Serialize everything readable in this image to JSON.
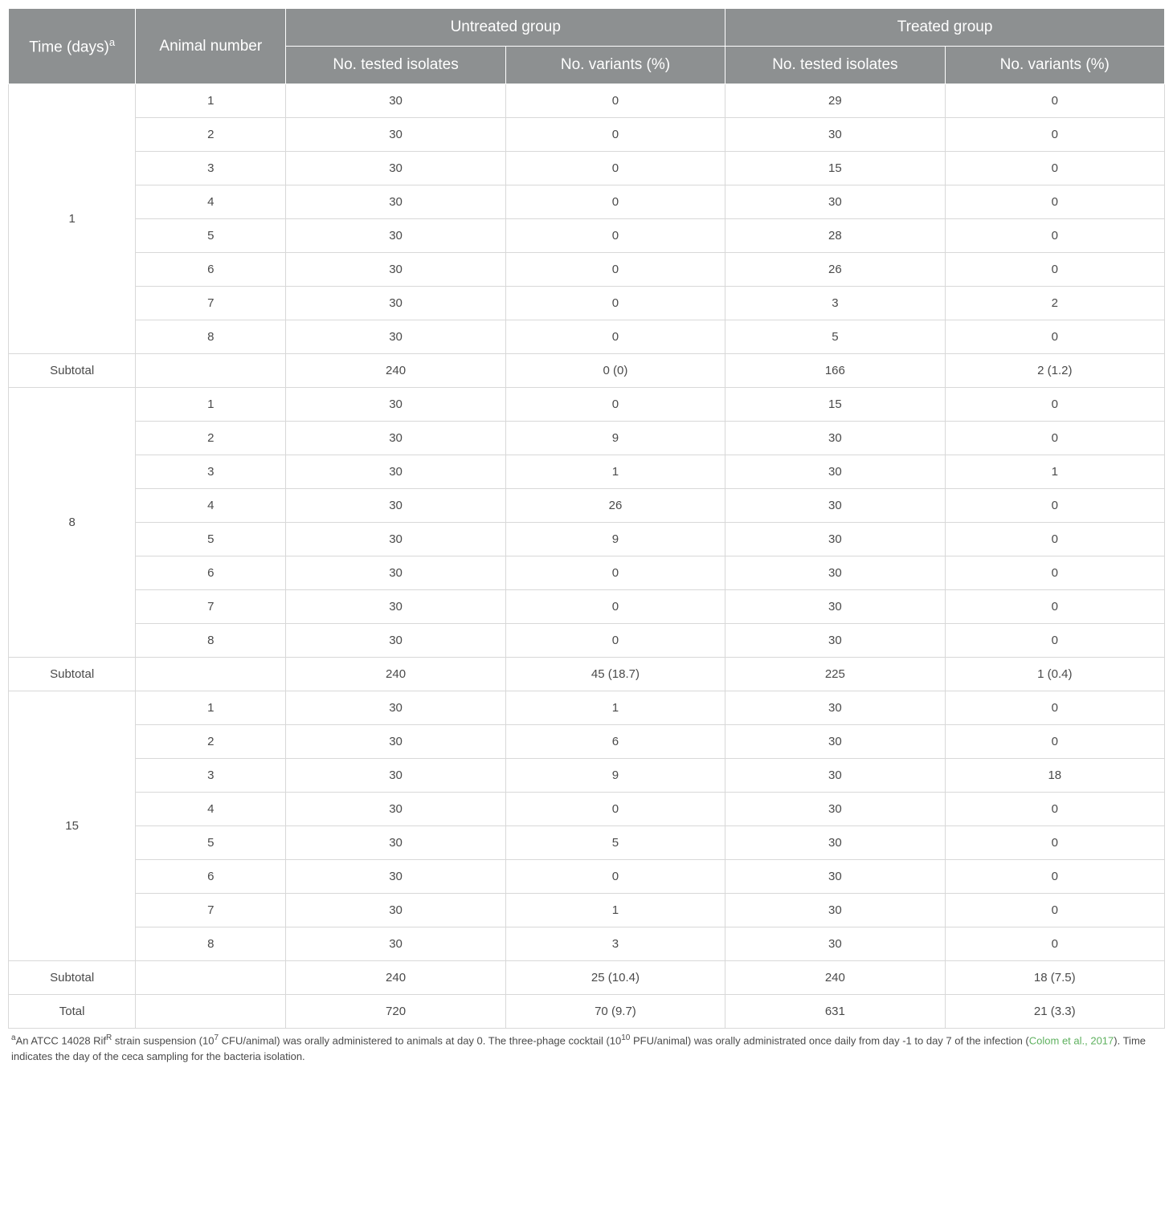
{
  "table": {
    "header": {
      "time": "Time (days)",
      "time_sup": "a",
      "animal": "Animal number",
      "untreated": "Untreated group",
      "treated": "Treated group",
      "tested": "No. tested isolates",
      "variants": "No. variants (%)"
    },
    "groups": [
      {
        "time": "1",
        "rows": [
          {
            "animal": "1",
            "u_tested": "30",
            "u_var": "0",
            "t_tested": "29",
            "t_var": "0"
          },
          {
            "animal": "2",
            "u_tested": "30",
            "u_var": "0",
            "t_tested": "30",
            "t_var": "0"
          },
          {
            "animal": "3",
            "u_tested": "30",
            "u_var": "0",
            "t_tested": "15",
            "t_var": "0"
          },
          {
            "animal": "4",
            "u_tested": "30",
            "u_var": "0",
            "t_tested": "30",
            "t_var": "0"
          },
          {
            "animal": "5",
            "u_tested": "30",
            "u_var": "0",
            "t_tested": "28",
            "t_var": "0"
          },
          {
            "animal": "6",
            "u_tested": "30",
            "u_var": "0",
            "t_tested": "26",
            "t_var": "0"
          },
          {
            "animal": "7",
            "u_tested": "30",
            "u_var": "0",
            "t_tested": "3",
            "t_var": "2"
          },
          {
            "animal": "8",
            "u_tested": "30",
            "u_var": "0",
            "t_tested": "5",
            "t_var": "0"
          }
        ],
        "subtotal": {
          "label": "Subtotal",
          "u_tested": "240",
          "u_var": "0 (0)",
          "t_tested": "166",
          "t_var": "2 (1.2)"
        }
      },
      {
        "time": "8",
        "rows": [
          {
            "animal": "1",
            "u_tested": "30",
            "u_var": "0",
            "t_tested": "15",
            "t_var": "0"
          },
          {
            "animal": "2",
            "u_tested": "30",
            "u_var": "9",
            "t_tested": "30",
            "t_var": "0"
          },
          {
            "animal": "3",
            "u_tested": "30",
            "u_var": "1",
            "t_tested": "30",
            "t_var": "1"
          },
          {
            "animal": "4",
            "u_tested": "30",
            "u_var": "26",
            "t_tested": "30",
            "t_var": "0"
          },
          {
            "animal": "5",
            "u_tested": "30",
            "u_var": "9",
            "t_tested": "30",
            "t_var": "0"
          },
          {
            "animal": "6",
            "u_tested": "30",
            "u_var": "0",
            "t_tested": "30",
            "t_var": "0"
          },
          {
            "animal": "7",
            "u_tested": "30",
            "u_var": "0",
            "t_tested": "30",
            "t_var": "0"
          },
          {
            "animal": "8",
            "u_tested": "30",
            "u_var": "0",
            "t_tested": "30",
            "t_var": "0"
          }
        ],
        "subtotal": {
          "label": "Subtotal",
          "u_tested": "240",
          "u_var": "45 (18.7)",
          "t_tested": "225",
          "t_var": "1 (0.4)"
        }
      },
      {
        "time": "15",
        "rows": [
          {
            "animal": "1",
            "u_tested": "30",
            "u_var": "1",
            "t_tested": "30",
            "t_var": "0"
          },
          {
            "animal": "2",
            "u_tested": "30",
            "u_var": "6",
            "t_tested": "30",
            "t_var": "0"
          },
          {
            "animal": "3",
            "u_tested": "30",
            "u_var": "9",
            "t_tested": "30",
            "t_var": "18"
          },
          {
            "animal": "4",
            "u_tested": "30",
            "u_var": "0",
            "t_tested": "30",
            "t_var": "0"
          },
          {
            "animal": "5",
            "u_tested": "30",
            "u_var": "5",
            "t_tested": "30",
            "t_var": "0"
          },
          {
            "animal": "6",
            "u_tested": "30",
            "u_var": "0",
            "t_tested": "30",
            "t_var": "0"
          },
          {
            "animal": "7",
            "u_tested": "30",
            "u_var": "1",
            "t_tested": "30",
            "t_var": "0"
          },
          {
            "animal": "8",
            "u_tested": "30",
            "u_var": "3",
            "t_tested": "30",
            "t_var": "0"
          }
        ],
        "subtotal": {
          "label": "Subtotal",
          "u_tested": "240",
          "u_var": "25 (10.4)",
          "t_tested": "240",
          "t_var": "18 (7.5)"
        }
      }
    ],
    "total": {
      "label": "Total",
      "u_tested": "720",
      "u_var": "70 (9.7)",
      "t_tested": "631",
      "t_var": "21 (3.3)"
    }
  },
  "footnote": {
    "sup": "a",
    "text_before": "An ATCC 14028 Rif",
    "rif_sup": "R",
    "text_mid1": " strain suspension (10",
    "exp1": "7",
    "text_mid2": " CFU/animal) was orally administered to animals at day 0. The three-phage cocktail (10",
    "exp2": "10",
    "text_mid3": " PFU/animal) was orally administrated once daily from day -1 to day 7 of the infection (",
    "citation": "Colom et al., 2017",
    "text_after": "). Time indicates the day of the ceca sampling for the bacteria isolation."
  }
}
